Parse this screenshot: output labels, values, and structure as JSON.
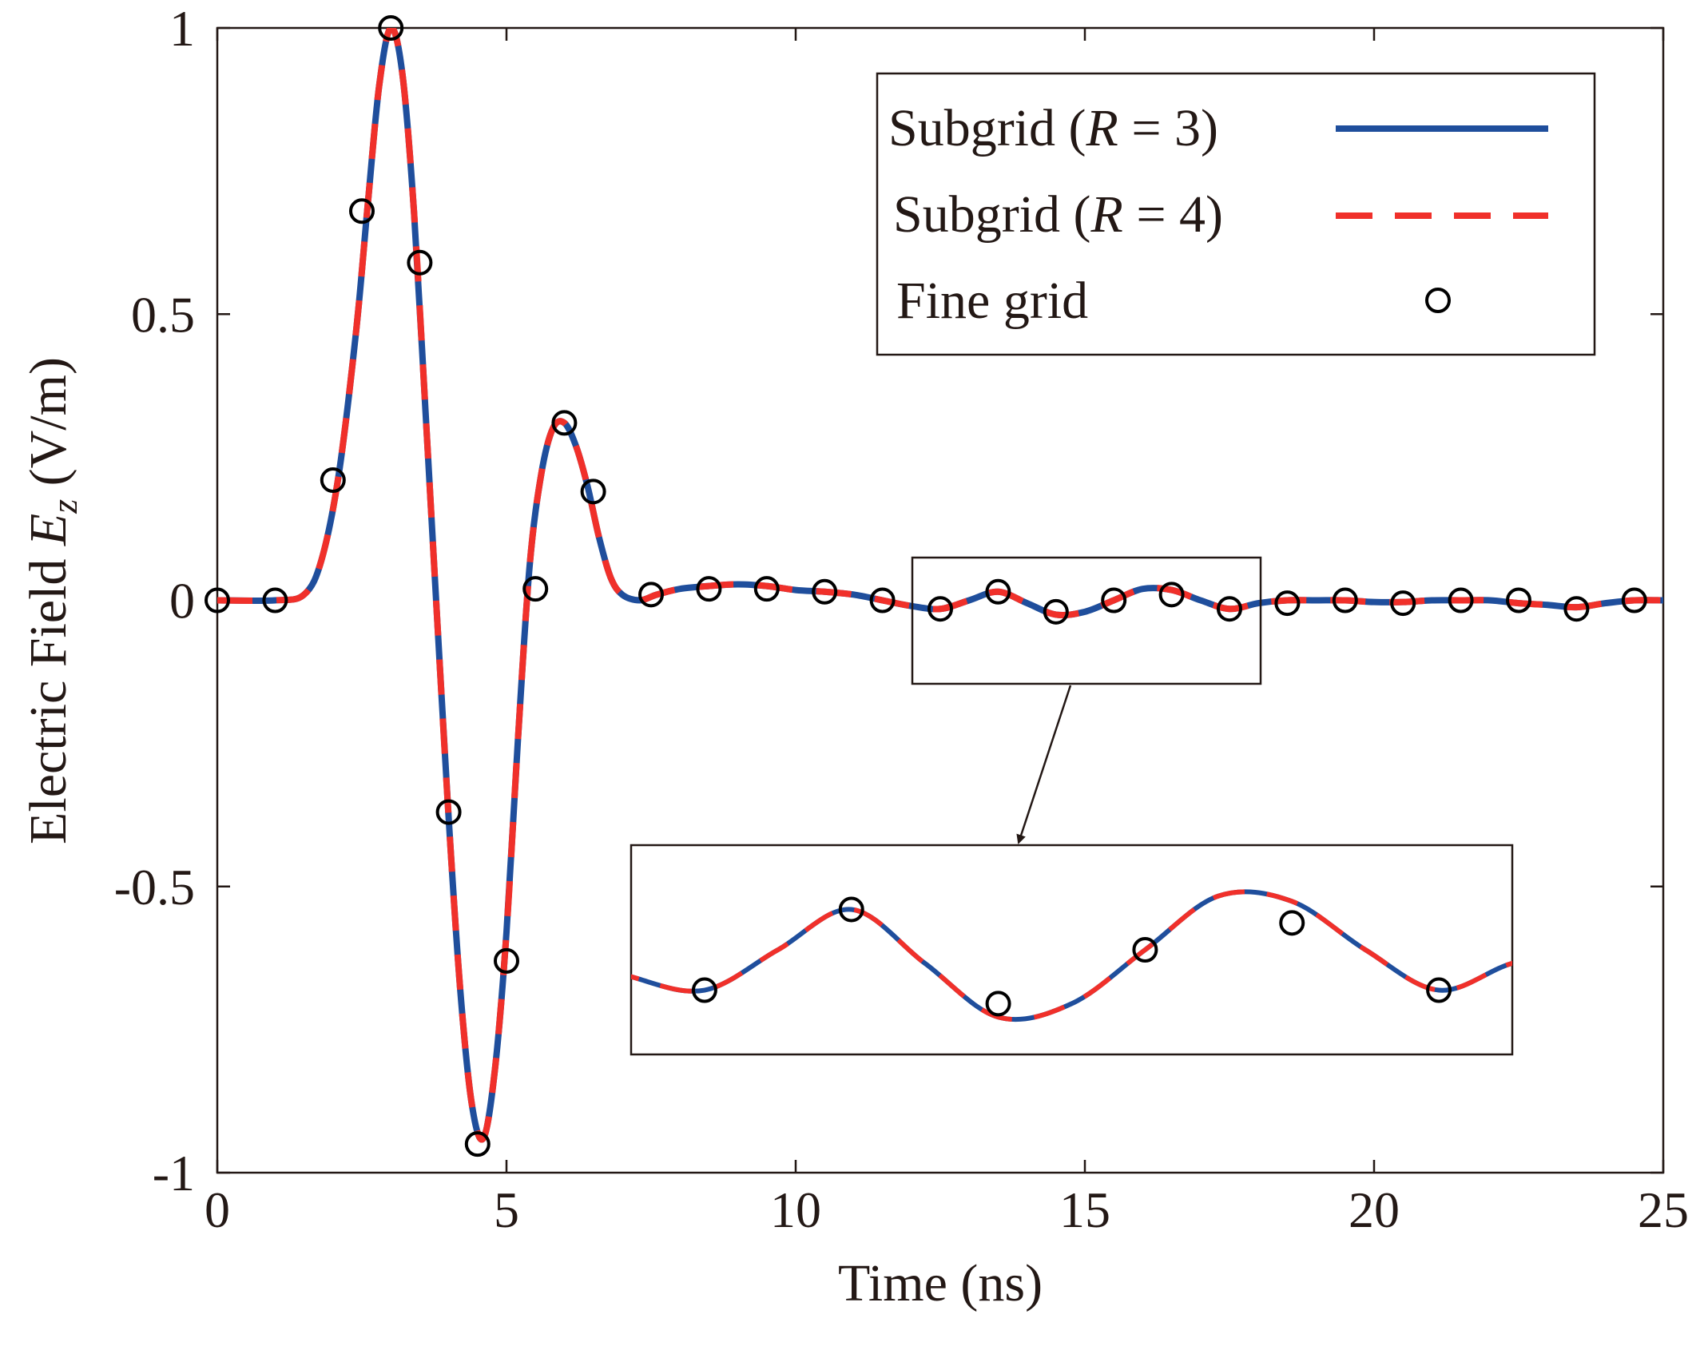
{
  "chart_data": {
    "type": "line",
    "xlabel": "Time (ns)",
    "ylabel": "Electric Field",
    "ylabel_symbol": "E",
    "ylabel_subscript": "z",
    "ylabel_units": "(V/m)",
    "xlim": [
      0,
      25
    ],
    "ylim": [
      -1,
      1
    ],
    "xticks": [
      0,
      5,
      10,
      15,
      20,
      25
    ],
    "xtick_labels": [
      "0",
      "5",
      "10",
      "15",
      "20",
      "25"
    ],
    "yticks": [
      -1,
      -0.5,
      0,
      0.5,
      1
    ],
    "ytick_labels": [
      "-1",
      "-0.5",
      "0",
      "0.5",
      "1"
    ],
    "grid": false,
    "legend": {
      "placement": "top-right",
      "entries": [
        {
          "name_prefix": "Subgrid (",
          "name_var": "R",
          "name_suffix": " = 3)",
          "style": "solid",
          "color": "#1f4e9c"
        },
        {
          "name_prefix": "Subgrid (",
          "name_var": "R",
          "name_suffix": " = 4)",
          "style": "dashed",
          "color": "#f0302a"
        },
        {
          "name_prefix": "Fine grid",
          "name_var": "",
          "name_suffix": "",
          "style": "circle",
          "color": "#000000"
        }
      ]
    },
    "series": [
      {
        "name": "Subgrid (R = 3)",
        "style": "solid",
        "color": "#1f4e9c",
        "x": [
          0,
          1.0,
          1.5,
          1.8,
          2.1,
          2.4,
          2.6,
          2.8,
          3.0,
          3.2,
          3.4,
          3.6,
          3.8,
          4.0,
          4.2,
          4.4,
          4.6,
          4.8,
          5.0,
          5.2,
          5.4,
          5.6,
          5.8,
          6.0,
          6.2,
          6.4,
          6.6,
          6.8,
          7.0,
          7.3,
          7.6,
          8.0,
          8.5,
          9.0,
          9.5,
          10.0,
          10.5,
          11.0,
          11.5,
          12.0,
          12.5,
          13.0,
          13.5,
          14.0,
          14.5,
          15.0,
          15.5,
          16.0,
          16.5,
          17.0,
          17.5,
          18.0,
          18.5,
          19.0,
          19.5,
          20.0,
          20.5,
          21.0,
          21.5,
          22.0,
          22.5,
          23.0,
          23.5,
          24.0,
          24.5,
          25.0
        ],
        "y": [
          0,
          0,
          0.01,
          0.07,
          0.22,
          0.47,
          0.69,
          0.9,
          1.0,
          0.92,
          0.68,
          0.33,
          -0.03,
          -0.38,
          -0.68,
          -0.88,
          -0.94,
          -0.82,
          -0.58,
          -0.24,
          0.06,
          0.22,
          0.3,
          0.31,
          0.27,
          0.2,
          0.11,
          0.04,
          0.01,
          0.0,
          0.01,
          0.02,
          0.025,
          0.028,
          0.025,
          0.018,
          0.015,
          0.01,
          0.0,
          -0.01,
          -0.015,
          0.0,
          0.015,
          -0.005,
          -0.025,
          -0.02,
          0.0,
          0.02,
          0.018,
          0.0,
          -0.015,
          -0.005,
          0.0,
          0.0,
          0.0,
          -0.003,
          -0.003,
          0.0,
          0.0,
          0.0,
          -0.005,
          -0.008,
          -0.012,
          -0.005,
          0.0,
          0.0
        ]
      },
      {
        "name": "Subgrid (R = 4)",
        "style": "dashed",
        "color": "#f0302a",
        "x": [
          0,
          1.0,
          1.5,
          1.8,
          2.1,
          2.4,
          2.6,
          2.8,
          3.0,
          3.2,
          3.4,
          3.6,
          3.8,
          4.0,
          4.2,
          4.4,
          4.6,
          4.8,
          5.0,
          5.2,
          5.4,
          5.6,
          5.8,
          6.0,
          6.2,
          6.4,
          6.6,
          6.8,
          7.0,
          7.3,
          7.6,
          8.0,
          8.5,
          9.0,
          9.5,
          10.0,
          10.5,
          11.0,
          11.5,
          12.0,
          12.5,
          13.0,
          13.5,
          14.0,
          14.5,
          15.0,
          15.5,
          16.0,
          16.5,
          17.0,
          17.5,
          18.0,
          18.5,
          19.0,
          19.5,
          20.0,
          20.5,
          21.0,
          21.5,
          22.0,
          22.5,
          23.0,
          23.5,
          24.0,
          24.5,
          25.0
        ],
        "y": [
          0,
          0,
          0.01,
          0.07,
          0.22,
          0.47,
          0.69,
          0.9,
          1.0,
          0.92,
          0.68,
          0.33,
          -0.03,
          -0.38,
          -0.68,
          -0.88,
          -0.94,
          -0.82,
          -0.58,
          -0.24,
          0.06,
          0.22,
          0.3,
          0.31,
          0.27,
          0.2,
          0.11,
          0.04,
          0.01,
          0.0,
          0.01,
          0.02,
          0.025,
          0.028,
          0.025,
          0.018,
          0.015,
          0.01,
          0.0,
          -0.01,
          -0.015,
          0.0,
          0.015,
          -0.005,
          -0.025,
          -0.02,
          0.0,
          0.02,
          0.018,
          0.0,
          -0.015,
          -0.005,
          0.0,
          0.0,
          0.0,
          -0.003,
          -0.003,
          0.0,
          0.0,
          0.0,
          -0.005,
          -0.008,
          -0.012,
          -0.005,
          0.0,
          0.0
        ]
      },
      {
        "name": "Fine grid",
        "style": "markers-circle",
        "color": "#000000",
        "x": [
          0.0,
          1.0,
          2.0,
          2.5,
          3.0,
          3.5,
          4.0,
          4.5,
          5.0,
          5.5,
          6.0,
          6.5,
          7.5,
          8.5,
          9.5,
          10.5,
          11.5,
          12.5,
          13.5,
          14.5,
          15.5,
          16.5,
          17.5,
          18.5,
          19.5,
          20.5,
          21.5,
          22.5,
          23.5,
          24.5
        ],
        "y": [
          0.0,
          0.0,
          0.21,
          0.68,
          1.0,
          0.59,
          -0.37,
          -0.95,
          -0.63,
          0.02,
          0.31,
          0.19,
          0.01,
          0.02,
          0.02,
          0.015,
          0.0,
          -0.015,
          0.015,
          -0.02,
          0.0,
          0.01,
          -0.015,
          -0.005,
          0.0,
          -0.005,
          0.0,
          0.0,
          -0.015,
          0.0
        ]
      }
    ],
    "inset": {
      "zoom_region_x": [
        12.0,
        18.0
      ],
      "zoom_region_y": [
        -0.12,
        0.1
      ],
      "series_y_range": [
        -0.035,
        0.035
      ]
    }
  }
}
